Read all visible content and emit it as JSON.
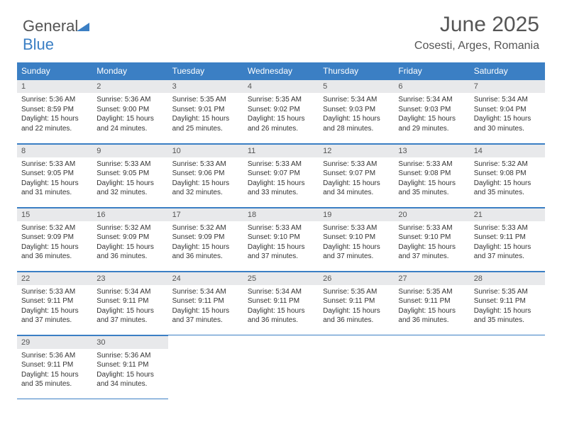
{
  "logo": {
    "word1": "General",
    "word2": "Blue"
  },
  "header": {
    "title": "June 2025",
    "location": "Cosesti, Arges, Romania"
  },
  "colors": {
    "header_bg": "#3b7fc4",
    "header_text": "#ffffff",
    "daynum_bg": "#e8e9eb",
    "daynum_text": "#555555",
    "cell_text": "#333333",
    "border": "#3b7fc4",
    "page_bg": "#ffffff",
    "logo_gray": "#545454",
    "logo_blue": "#3b7fc4",
    "title_gray": "#555555"
  },
  "fonts": {
    "title_size_pt": 23,
    "location_size_pt": 12,
    "dayheader_size_pt": 9,
    "daynum_size_pt": 8,
    "body_size_pt": 7.5
  },
  "layout": {
    "first_day_col": 0,
    "cols": 7,
    "rows": 5
  },
  "day_names": [
    "Sunday",
    "Monday",
    "Tuesday",
    "Wednesday",
    "Thursday",
    "Friday",
    "Saturday"
  ],
  "days": [
    {
      "n": 1,
      "sunrise": "5:36 AM",
      "sunset": "8:59 PM",
      "dl_h": 15,
      "dl_m": 22
    },
    {
      "n": 2,
      "sunrise": "5:36 AM",
      "sunset": "9:00 PM",
      "dl_h": 15,
      "dl_m": 24
    },
    {
      "n": 3,
      "sunrise": "5:35 AM",
      "sunset": "9:01 PM",
      "dl_h": 15,
      "dl_m": 25
    },
    {
      "n": 4,
      "sunrise": "5:35 AM",
      "sunset": "9:02 PM",
      "dl_h": 15,
      "dl_m": 26
    },
    {
      "n": 5,
      "sunrise": "5:34 AM",
      "sunset": "9:03 PM",
      "dl_h": 15,
      "dl_m": 28
    },
    {
      "n": 6,
      "sunrise": "5:34 AM",
      "sunset": "9:03 PM",
      "dl_h": 15,
      "dl_m": 29
    },
    {
      "n": 7,
      "sunrise": "5:34 AM",
      "sunset": "9:04 PM",
      "dl_h": 15,
      "dl_m": 30
    },
    {
      "n": 8,
      "sunrise": "5:33 AM",
      "sunset": "9:05 PM",
      "dl_h": 15,
      "dl_m": 31
    },
    {
      "n": 9,
      "sunrise": "5:33 AM",
      "sunset": "9:05 PM",
      "dl_h": 15,
      "dl_m": 32
    },
    {
      "n": 10,
      "sunrise": "5:33 AM",
      "sunset": "9:06 PM",
      "dl_h": 15,
      "dl_m": 32
    },
    {
      "n": 11,
      "sunrise": "5:33 AM",
      "sunset": "9:07 PM",
      "dl_h": 15,
      "dl_m": 33
    },
    {
      "n": 12,
      "sunrise": "5:33 AM",
      "sunset": "9:07 PM",
      "dl_h": 15,
      "dl_m": 34
    },
    {
      "n": 13,
      "sunrise": "5:33 AM",
      "sunset": "9:08 PM",
      "dl_h": 15,
      "dl_m": 35
    },
    {
      "n": 14,
      "sunrise": "5:32 AM",
      "sunset": "9:08 PM",
      "dl_h": 15,
      "dl_m": 35
    },
    {
      "n": 15,
      "sunrise": "5:32 AM",
      "sunset": "9:09 PM",
      "dl_h": 15,
      "dl_m": 36
    },
    {
      "n": 16,
      "sunrise": "5:32 AM",
      "sunset": "9:09 PM",
      "dl_h": 15,
      "dl_m": 36
    },
    {
      "n": 17,
      "sunrise": "5:32 AM",
      "sunset": "9:09 PM",
      "dl_h": 15,
      "dl_m": 36
    },
    {
      "n": 18,
      "sunrise": "5:33 AM",
      "sunset": "9:10 PM",
      "dl_h": 15,
      "dl_m": 37
    },
    {
      "n": 19,
      "sunrise": "5:33 AM",
      "sunset": "9:10 PM",
      "dl_h": 15,
      "dl_m": 37
    },
    {
      "n": 20,
      "sunrise": "5:33 AM",
      "sunset": "9:10 PM",
      "dl_h": 15,
      "dl_m": 37
    },
    {
      "n": 21,
      "sunrise": "5:33 AM",
      "sunset": "9:11 PM",
      "dl_h": 15,
      "dl_m": 37
    },
    {
      "n": 22,
      "sunrise": "5:33 AM",
      "sunset": "9:11 PM",
      "dl_h": 15,
      "dl_m": 37
    },
    {
      "n": 23,
      "sunrise": "5:34 AM",
      "sunset": "9:11 PM",
      "dl_h": 15,
      "dl_m": 37
    },
    {
      "n": 24,
      "sunrise": "5:34 AM",
      "sunset": "9:11 PM",
      "dl_h": 15,
      "dl_m": 37
    },
    {
      "n": 25,
      "sunrise": "5:34 AM",
      "sunset": "9:11 PM",
      "dl_h": 15,
      "dl_m": 36
    },
    {
      "n": 26,
      "sunrise": "5:35 AM",
      "sunset": "9:11 PM",
      "dl_h": 15,
      "dl_m": 36
    },
    {
      "n": 27,
      "sunrise": "5:35 AM",
      "sunset": "9:11 PM",
      "dl_h": 15,
      "dl_m": 36
    },
    {
      "n": 28,
      "sunrise": "5:35 AM",
      "sunset": "9:11 PM",
      "dl_h": 15,
      "dl_m": 35
    },
    {
      "n": 29,
      "sunrise": "5:36 AM",
      "sunset": "9:11 PM",
      "dl_h": 15,
      "dl_m": 35
    },
    {
      "n": 30,
      "sunrise": "5:36 AM",
      "sunset": "9:11 PM",
      "dl_h": 15,
      "dl_m": 34
    }
  ],
  "labels": {
    "sunrise": "Sunrise:",
    "sunset": "Sunset:",
    "daylight": "Daylight:",
    "hours": "hours",
    "and": "and",
    "minutes": "minutes."
  }
}
